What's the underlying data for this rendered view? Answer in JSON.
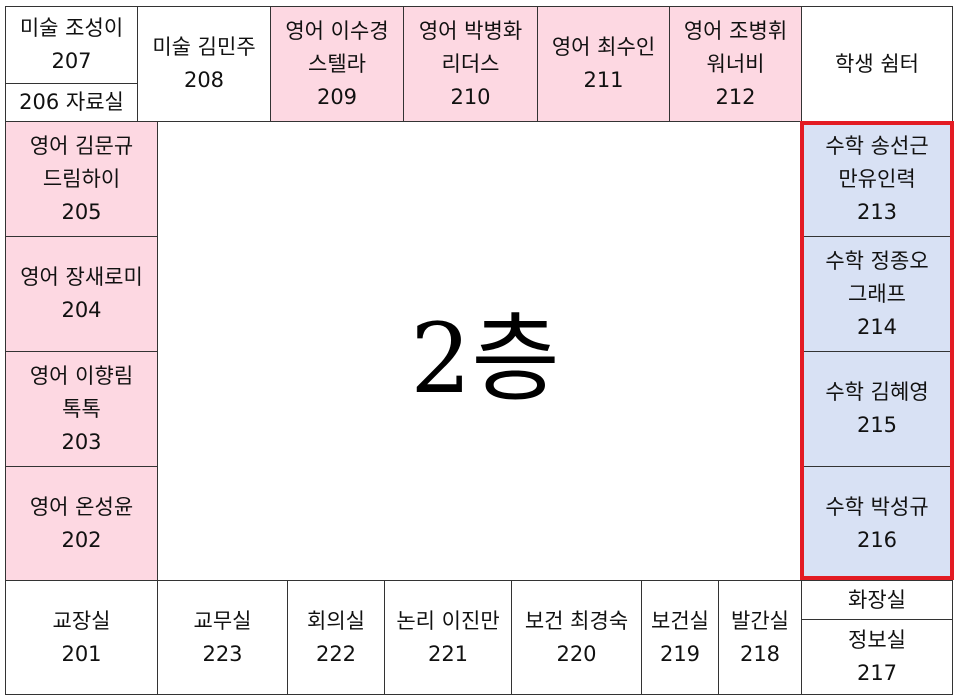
{
  "colors": {
    "pink": "#fdd8e2",
    "blue": "#d8e1f4",
    "highlight_red": "#e31b23"
  },
  "floor_label": "2층",
  "rooms": {
    "r207": {
      "line1": "미술 조성이",
      "line2": "207"
    },
    "r206": {
      "line1": "206 자료실"
    },
    "r208": {
      "line1": "미술 김민주",
      "line2": "208"
    },
    "r209": {
      "line1": "영어 이수경",
      "line2": "스텔라",
      "line3": "209"
    },
    "r210": {
      "line1": "영어 박병화",
      "line2": "리더스",
      "line3": "210"
    },
    "r211": {
      "line1": "영어 최수인",
      "line2": "211"
    },
    "r212": {
      "line1": "영어 조병휘",
      "line2": "워너비",
      "line3": "212"
    },
    "shelter": {
      "line1": "학생 쉼터"
    },
    "r205": {
      "line1": "영어 김문규",
      "line2": "드림하이",
      "line3": "205"
    },
    "r204": {
      "line1": "영어 장새로미",
      "line2": "204"
    },
    "r203": {
      "line1": "영어 이향림",
      "line2": "톡톡",
      "line3": "203"
    },
    "r202": {
      "line1": "영어 온성윤",
      "line2": "202"
    },
    "r213": {
      "line1": "수학 송선근",
      "line2": "만유인력",
      "line3": "213"
    },
    "r214": {
      "line1": "수학 정종오",
      "line2": "그래프",
      "line3": "214"
    },
    "r215": {
      "line1": "수학 김혜영",
      "line2": "215"
    },
    "r216": {
      "line1": "수학 박성규",
      "line2": "216"
    },
    "r201": {
      "line1": "교장실",
      "line2": "201"
    },
    "r223": {
      "line1": "교무실",
      "line2": "223"
    },
    "r222": {
      "line1": "회의실",
      "line2": "222"
    },
    "r221": {
      "line1": "논리 이진만",
      "line2": "221"
    },
    "r220": {
      "line1": "보건 최경숙",
      "line2": "220"
    },
    "r219": {
      "line1": "보건실",
      "line2": "219"
    },
    "r218": {
      "line1": "발간실",
      "line2": "218"
    },
    "restroom": {
      "line1": "화장실"
    },
    "r217": {
      "line1": "정보실",
      "line2": "217"
    }
  }
}
